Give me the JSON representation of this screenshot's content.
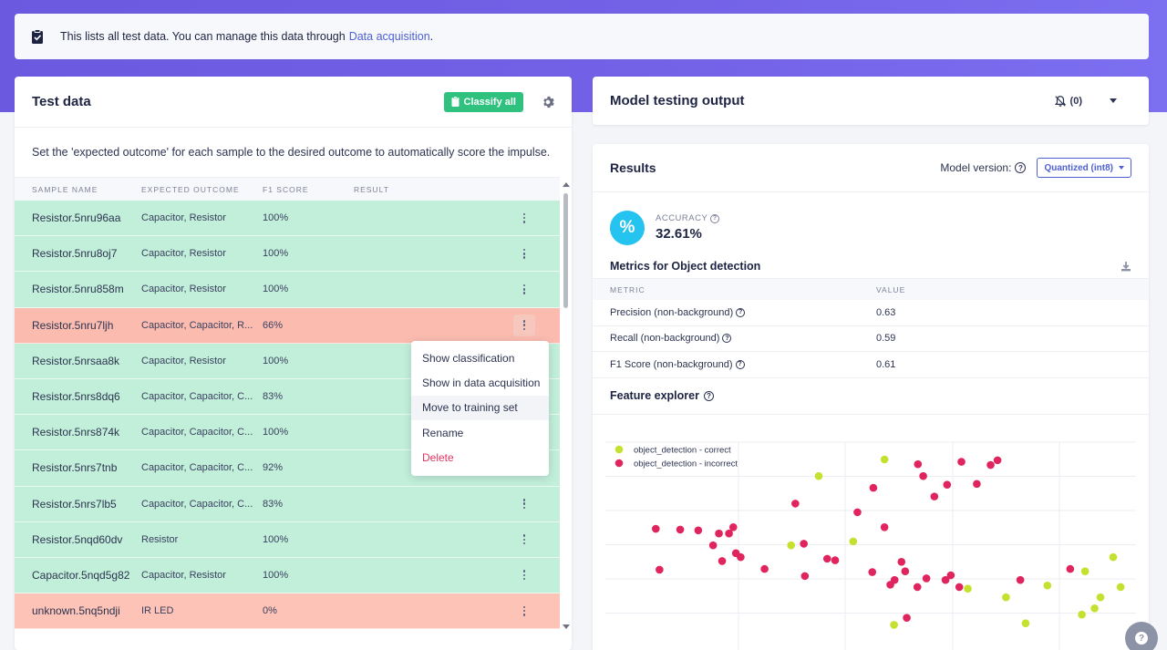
{
  "notice": {
    "text": "This lists all test data. You can manage this data through",
    "link": "Data acquisition",
    "period": "."
  },
  "test_data": {
    "title": "Test data",
    "classify_all": "Classify all",
    "description": "Set the 'expected outcome' for each sample to the desired outcome to automatically score the impulse.",
    "columns": [
      "SAMPLE NAME",
      "EXPECTED OUTCOME",
      "F1 SCORE",
      "RESULT"
    ],
    "rows": [
      {
        "name": "Resistor.5nru96aa",
        "expected": "Capacitor, Resistor",
        "f1": "100%",
        "status": "ok"
      },
      {
        "name": "Resistor.5nru8oj7",
        "expected": "Capacitor, Resistor",
        "f1": "100%",
        "status": "ok"
      },
      {
        "name": "Resistor.5nru858m",
        "expected": "Capacitor, Resistor",
        "f1": "100%",
        "status": "ok"
      },
      {
        "name": "Resistor.5nru7ljh",
        "expected": "Capacitor, Capacitor, R...",
        "f1": "66%",
        "status": "bad"
      },
      {
        "name": "Resistor.5nrsaa8k",
        "expected": "Capacitor, Resistor",
        "f1": "100%",
        "status": "ok"
      },
      {
        "name": "Resistor.5nrs8dq6",
        "expected": "Capacitor, Capacitor, C...",
        "f1": "83%",
        "status": "ok"
      },
      {
        "name": "Resistor.5nrs874k",
        "expected": "Capacitor, Capacitor, C...",
        "f1": "100%",
        "status": "ok"
      },
      {
        "name": "Resistor.5nrs7tnb",
        "expected": "Capacitor, Capacitor, C...",
        "f1": "92%",
        "status": "ok"
      },
      {
        "name": "Resistor.5nrs7lb5",
        "expected": "Capacitor, Capacitor, C...",
        "f1": "83%",
        "status": "ok"
      },
      {
        "name": "Resistor.5nqd60dv",
        "expected": "Resistor",
        "f1": "100%",
        "status": "ok"
      },
      {
        "name": "Capacitor.5nqd5g82",
        "expected": "Capacitor, Resistor",
        "f1": "100%",
        "status": "ok"
      },
      {
        "name": "unknown.5nq5ndji",
        "expected": "IR LED",
        "f1": "0%",
        "status": "bad2"
      }
    ],
    "context_menu": [
      "Show classification",
      "Show in data acquisition",
      "Move to training set",
      "Rename",
      "Delete"
    ]
  },
  "model_output": {
    "title": "Model testing output",
    "notification_count": "(0)"
  },
  "results": {
    "title": "Results",
    "model_version_label": "Model version:",
    "model_version_value": "Quantized (int8)",
    "accuracy_label": "ACCURACY",
    "accuracy_value": "32.61%",
    "accuracy_icon": "%",
    "metrics_title": "Metrics for Object detection",
    "metric_columns": [
      "METRIC",
      "VALUE"
    ],
    "metrics": [
      {
        "name": "Precision (non-background)",
        "value": "0.63"
      },
      {
        "name": "Recall (non-background)",
        "value": "0.59"
      },
      {
        "name": "F1 Score (non-background)",
        "value": "0.61"
      }
    ],
    "feature_explorer_title": "Feature explorer",
    "legend": [
      {
        "label": "object_detection - correct",
        "color": "#c5e02e"
      },
      {
        "label": "object_detection - incorrect",
        "color": "#e0245e"
      }
    ]
  },
  "chart_data": {
    "type": "scatter",
    "title": "Feature explorer",
    "xlabel": "",
    "ylabel": "",
    "xlim": [
      0,
      100
    ],
    "ylim": [
      0,
      100
    ],
    "series": [
      {
        "name": "object_detection - correct",
        "color": "#c5e02e",
        "points": [
          [
            40.2,
            82.8
          ],
          [
            52.6,
            91.2
          ],
          [
            35.0,
            47.6
          ],
          [
            46.7,
            49.6
          ],
          [
            95.7,
            41.6
          ],
          [
            68.3,
            25.6
          ],
          [
            75.5,
            21.2
          ],
          [
            83.3,
            27.2
          ],
          [
            54.4,
            7.2
          ],
          [
            90.4,
            34.4
          ],
          [
            93.3,
            21.2
          ],
          [
            92.2,
            15.6
          ],
          [
            97.1,
            26.4
          ],
          [
            79.2,
            8.0
          ],
          [
            89.8,
            12.4
          ]
        ]
      },
      {
        "name": "object_detection - incorrect",
        "color": "#e0245e",
        "points": [
          [
            58.9,
            88.8
          ],
          [
            67.1,
            90.0
          ],
          [
            72.6,
            88.4
          ],
          [
            73.9,
            90.8
          ],
          [
            59.9,
            82.8
          ],
          [
            64.4,
            78.4
          ],
          [
            70.0,
            78.8
          ],
          [
            62.0,
            72.4
          ],
          [
            50.5,
            76.8
          ],
          [
            47.5,
            64.4
          ],
          [
            52.6,
            56.8
          ],
          [
            35.8,
            68.8
          ],
          [
            17.5,
            55.2
          ],
          [
            9.5,
            56.0
          ],
          [
            14.1,
            55.6
          ],
          [
            21.4,
            53.6
          ],
          [
            24.1,
            56.8
          ],
          [
            23.3,
            53.6
          ],
          [
            20.3,
            47.6
          ],
          [
            24.6,
            43.6
          ],
          [
            37.4,
            48.4
          ],
          [
            10.2,
            35.2
          ],
          [
            22.0,
            39.6
          ],
          [
            25.5,
            41.6
          ],
          [
            30.0,
            35.6
          ],
          [
            55.8,
            39.2
          ],
          [
            43.3,
            40.0
          ],
          [
            54.5,
            30.0
          ],
          [
            41.8,
            40.8
          ],
          [
            50.3,
            34.0
          ],
          [
            56.5,
            34.4
          ],
          [
            60.5,
            30.8
          ],
          [
            64.1,
            30.0
          ],
          [
            65.1,
            32.4
          ],
          [
            58.8,
            26.4
          ],
          [
            66.7,
            26.4
          ],
          [
            78.2,
            30.0
          ],
          [
            87.6,
            35.6
          ],
          [
            53.7,
            27.6
          ],
          [
            56.8,
            10.8
          ],
          [
            37.6,
            32.0
          ]
        ]
      }
    ]
  }
}
